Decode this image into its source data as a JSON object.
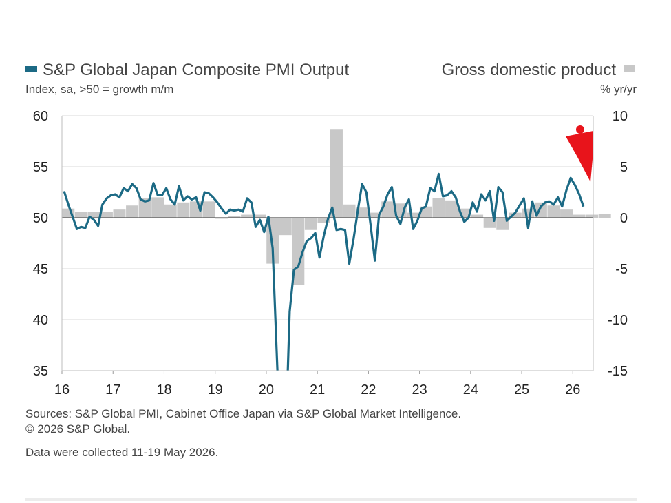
{
  "chart_data": {
    "type": "bar+line",
    "legend_left": "S&P Global Japan Composite PMI Output",
    "legend_right": "Gross domestic product",
    "left_axis_label": "Index, sa, >50 = growth m/m",
    "right_axis_label": "% yr/yr",
    "left_ylim": [
      35,
      60
    ],
    "left_ticks": [
      "60",
      "55",
      "50",
      "45",
      "40",
      "35"
    ],
    "right_ylim": [
      -15,
      10
    ],
    "right_ticks": [
      "10",
      "5",
      "0",
      "-5",
      "-10",
      "-15"
    ],
    "x_start": 2016.0,
    "x_end": 2026.4,
    "x_tick_labels": [
      "16",
      "17",
      "18",
      "19",
      "20",
      "21",
      "22",
      "23",
      "24",
      "25",
      "26"
    ],
    "grid": true,
    "colors": {
      "pmi_line": "#1c6a85",
      "gdp_bar": "#c8c8c8",
      "grid": "#d9d9d9",
      "zero_line": "#555555",
      "arrow": "#e8141b"
    },
    "pmi_series": {
      "name": "S&P Global Japan Composite PMI Output",
      "start": "2016-01",
      "values": [
        52.6,
        51.3,
        50.1,
        48.9,
        49.1,
        49.0,
        50.1,
        49.8,
        49.2,
        51.3,
        51.9,
        52.2,
        52.3,
        52.0,
        52.9,
        52.6,
        53.3,
        52.9,
        51.8,
        51.6,
        51.7,
        53.4,
        52.2,
        52.2,
        52.9,
        51.8,
        51.3,
        53.1,
        51.7,
        52.1,
        51.8,
        52.0,
        50.7,
        52.5,
        52.4,
        52.0,
        51.5,
        50.9,
        50.4,
        50.8,
        50.7,
        50.8,
        50.6,
        51.9,
        51.5,
        49.1,
        49.8,
        48.6,
        50.1,
        47.0,
        36.2,
        25.8,
        27.8,
        40.8,
        44.9,
        45.2,
        46.6,
        47.7,
        48.0,
        48.5,
        46.1,
        48.2,
        49.9,
        51.0,
        48.8,
        48.9,
        48.8,
        45.5,
        47.9,
        50.7,
        53.3,
        52.5,
        49.3,
        45.8,
        50.3,
        51.1,
        52.3,
        53.0,
        50.2,
        49.4,
        51.0,
        51.8,
        48.9,
        49.7,
        50.9,
        51.1,
        52.9,
        52.6,
        54.3,
        52.1,
        52.2,
        52.6,
        52.0,
        50.6,
        49.6,
        50.0,
        51.5,
        50.6,
        52.3,
        51.7,
        52.6,
        49.7,
        53.0,
        52.5,
        49.7,
        50.1,
        50.5,
        51.2,
        51.9,
        49.0,
        51.6,
        50.2,
        51.1,
        51.5,
        51.6,
        51.3,
        52.0,
        51.1,
        52.7,
        53.9,
        53.2,
        52.3,
        51.1
      ]
    },
    "gdp_series": {
      "name": "Gross domestic product",
      "start": "2016-Q1",
      "values": [
        0.9,
        0.6,
        0.6,
        0.6,
        0.8,
        1.2,
        1.9,
        2.0,
        1.3,
        1.5,
        1.6,
        1.6,
        -0.1,
        0.2,
        0.3,
        0.3,
        -4.5,
        -1.7,
        -6.6,
        -1.2,
        -0.5,
        8.7,
        1.3,
        1.0,
        0.5,
        1.6,
        1.4,
        0.5,
        1.1,
        1.9,
        1.7,
        0.9,
        0.3,
        -1.0,
        -1.2,
        0.5,
        0.9,
        1.5,
        1.2,
        0.8,
        0.3,
        0.3,
        0.4
      ]
    }
  },
  "footer": {
    "sources": "Sources: S&P Global PMI, Cabinet Office Japan via S&P Global Market Intelligence.",
    "copyright": "© 2026 S&P Global.",
    "collected": "Data were collected 11-19 May 2026."
  }
}
